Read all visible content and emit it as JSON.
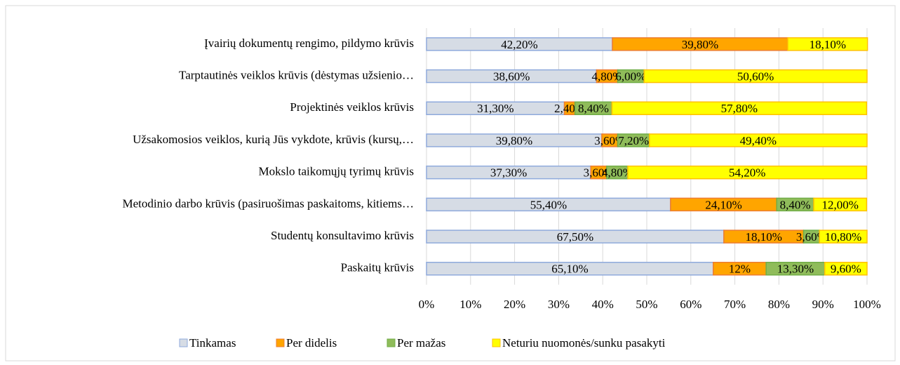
{
  "chart_data": {
    "type": "stacked-barh",
    "categories": [
      "Įvairių dokumentų rengimo, pildymo krūvis",
      "Tarptautinės veiklos krūvis (dėstymas užsienio…",
      "Projektinės veiklos krūvis",
      "Užsakomosios veiklos, kurią Jūs vykdote, krūvis (kursų,…",
      "Mokslo taikomųjų tyrimų krūvis",
      "Metodinio darbo krūvis (pasiruošimas paskaitoms, kitiems…",
      "Studentų konsultavimo krūvis",
      "Paskaitų krūvis"
    ],
    "series": [
      {
        "name": "Tinkamas",
        "color": "#d6dce5",
        "stroke": "#8faadc",
        "values": [
          42.2,
          38.6,
          31.3,
          39.8,
          37.3,
          55.4,
          67.5,
          65.1
        ],
        "value_labels": [
          "42,20%",
          "38,60%",
          "31,30%",
          "39,80%",
          "37,30%",
          "55,40%",
          "67,50%",
          "65,10%"
        ]
      },
      {
        "name": "Per didelis",
        "color": "#ffa500",
        "stroke": "#ed7d31",
        "values": [
          39.8,
          4.8,
          2.4,
          3.6,
          3.6,
          24.1,
          18.1,
          12
        ],
        "value_labels": [
          "39,80%",
          "4,80%",
          "2,40%",
          "3,60%",
          "3,60%",
          "24,10%",
          "18,10%",
          "12%"
        ]
      },
      {
        "name": "Per mažas",
        "color": "#8fbc5a",
        "stroke": "#70ad47",
        "values": [
          null,
          6.0,
          8.4,
          7.2,
          4.8,
          8.4,
          3.6,
          13.3
        ],
        "value_labels": [
          null,
          "6,00%",
          "8,40%",
          "7,20%",
          "4,80%",
          "8,40%",
          "3,60%",
          "13,30%"
        ]
      },
      {
        "name": "Neturiu nuomonės/sunku pasakyti",
        "color": "#ffff00",
        "stroke": "#ffc000",
        "values": [
          18.1,
          50.6,
          57.8,
          49.4,
          54.2,
          12.0,
          10.8,
          9.6
        ],
        "value_labels": [
          "18,10%",
          "50,60%",
          "57,80%",
          "49,40%",
          "54,20%",
          "12,00%",
          "10,80%",
          "9,60%"
        ]
      }
    ],
    "xlim": [
      0,
      100
    ],
    "xticks": [
      {
        "value": 0,
        "label": "0%"
      },
      {
        "value": 10,
        "label": "10%"
      },
      {
        "value": 20,
        "label": "20%"
      },
      {
        "value": 30,
        "label": "30%"
      },
      {
        "value": 40,
        "label": "40%"
      },
      {
        "value": 50,
        "label": "50%"
      },
      {
        "value": 60,
        "label": "60%"
      },
      {
        "value": 70,
        "label": "70%"
      },
      {
        "value": 80,
        "label": "80%"
      },
      {
        "value": 90,
        "label": "90%"
      },
      {
        "value": 100,
        "label": "100%"
      }
    ],
    "legend": "bottom"
  }
}
